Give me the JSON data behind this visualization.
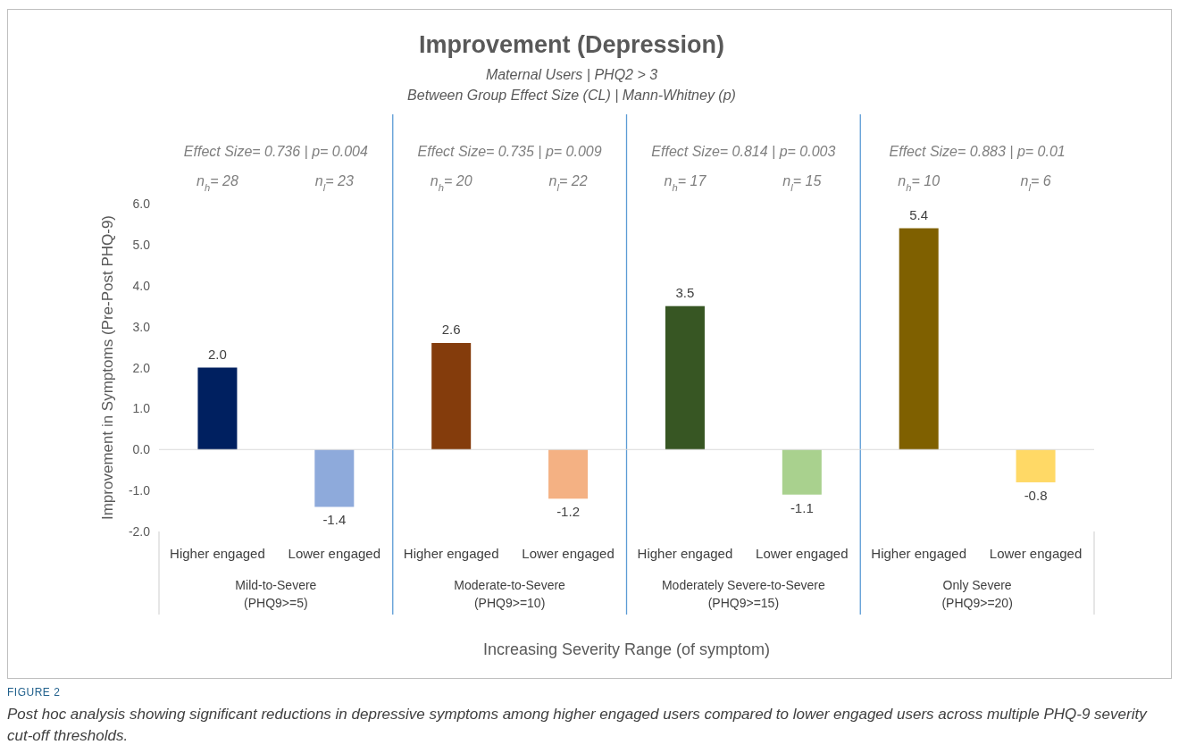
{
  "chart_data": {
    "type": "bar",
    "title": "Improvement (Depression)",
    "subtitle": "Maternal Users | PHQ2 > 3\nBetween Group Effect Size (CL) | Mann-Whitney (p)",
    "xlabel": "Increasing Severity Range (of symptom)",
    "ylabel": "Improvement in Symptoms (Pre-Post PHQ-9)",
    "categories": [
      "Higher engaged",
      "Lower engaged",
      "Higher engaged",
      "Lower engaged",
      "Higher engaged",
      "Lower engaged",
      "Higher engaged",
      "Lower engaged"
    ],
    "values": [
      2.0,
      -1.4,
      2.6,
      -1.2,
      3.5,
      -1.1,
      5.4,
      -0.8
    ],
    "value_labels": [
      "2.0",
      "-1.4",
      "2.6",
      "-1.2",
      "3.5",
      "-1.1",
      "5.4",
      "-0.8"
    ],
    "colors": [
      "#002060",
      "#8eaadb",
      "#843c0c",
      "#f4b183",
      "#375623",
      "#a9d18e",
      "#7f6000",
      "#ffd966"
    ],
    "ylim": [
      -2,
      6
    ],
    "yticks": [
      {
        "value": -2,
        "label": "-2.0"
      },
      {
        "value": -1,
        "label": "-1.0"
      },
      {
        "value": 0,
        "label": "0.0"
      },
      {
        "value": 1,
        "label": "1.0"
      },
      {
        "value": 2,
        "label": "2.0"
      },
      {
        "value": 3,
        "label": "3.0"
      },
      {
        "value": 4,
        "label": "4.0"
      },
      {
        "value": 5,
        "label": "5.0"
      },
      {
        "value": 6,
        "label": "6.0"
      }
    ],
    "annotations": [
      "Effect Size= 0.736  | p= 0.004",
      "Effect Size= 0.735  | p= 0.009",
      "Effect Size= 0.814  | p= 0.003",
      "Effect Size= 0.883  | p= 0.01",
      "n$_{h}$= 28",
      "n$_{l}$= 23",
      "n$_{h}$= 20",
      "n$_{l}$= 22",
      "n$_{h}$= 17",
      "n$_{l}$= 15",
      "n$_{h}$= 10",
      "n$_{l}$= 6",
      "Mild-to-Severe\n(PHQ9>=5)",
      "Moderate-to-Severe\n(PHQ9>=10)",
      "Moderately Severe-to-Severe\n(PHQ9>=15)",
      "Only Severe\n(PHQ9>=20)",
      "FIGURE 2",
      "Post hoc analysis showing significant reductions in depressive symptoms among higher engaged users compared to lower engaged users across multiple PHQ-9 severity cut-off thresholds."
    ]
  }
}
